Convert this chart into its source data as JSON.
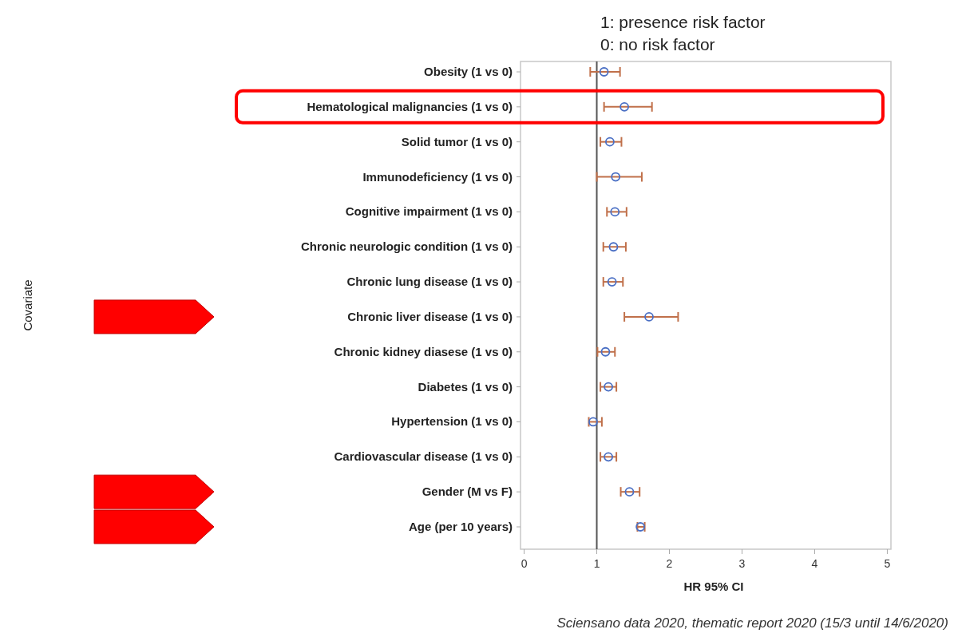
{
  "chart_data": {
    "type": "scatter",
    "orientation": "horizontal",
    "xlabel": "HR 95% CI",
    "categories": [
      "Obesity (1 vs 0)",
      "Hematological malignancies (1 vs 0)",
      "Solid tumor (1 vs 0)",
      "Immunodeficiency (1 vs 0)",
      "Cognitive impairment (1 vs 0)",
      "Chronic neurologic condition (1 vs 0)",
      "Chronic lung disease (1 vs 0)",
      "Chronic liver disease (1 vs 0)",
      "Chronic kidney diasese (1 vs 0)",
      "Diabetes (1 vs 0)",
      "Hypertension (1 vs 0)",
      "Cardiovascular disease (1 vs 0)",
      "Gender (M vs F)",
      "Age (per 10 years)"
    ],
    "series": [
      {
        "color": "#4a6fc4",
        "values": [
          1.1,
          1.38,
          1.18,
          1.26,
          1.25,
          1.23,
          1.21,
          1.72,
          1.12,
          1.16,
          0.95,
          1.16,
          1.45,
          1.6
        ],
        "errors": [
          [
            0.91,
            1.32
          ],
          [
            1.1,
            1.76
          ],
          [
            1.05,
            1.34
          ],
          [
            1.0,
            1.62
          ],
          [
            1.14,
            1.41
          ],
          [
            1.09,
            1.4
          ],
          [
            1.09,
            1.36
          ],
          [
            1.38,
            2.12
          ],
          [
            1.01,
            1.25
          ],
          [
            1.05,
            1.27
          ],
          [
            0.89,
            1.07
          ],
          [
            1.05,
            1.27
          ],
          [
            1.33,
            1.59
          ],
          [
            1.56,
            1.66
          ]
        ]
      }
    ],
    "xlim": [
      -0.05,
      5.05
    ],
    "xticks": [
      0,
      1,
      2,
      3,
      4,
      5
    ],
    "marker": "circle",
    "grid": false,
    "ref_lines": [
      {
        "axis": "x",
        "value": 1,
        "color": "#555555"
      }
    ],
    "annotations": [
      "1: presence risk factor",
      "0: no risk factor",
      "Sciensano data 2020, thematic report 2020 (15/3 until 14/6/2020)",
      "Covariate"
    ]
  }
}
